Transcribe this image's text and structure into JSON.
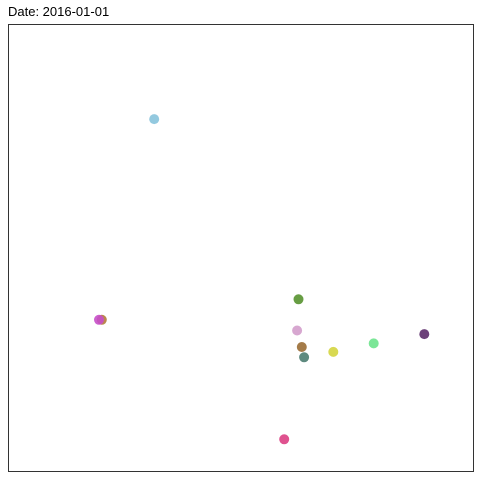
{
  "chart_data": {
    "type": "scatter",
    "title": "Date: 2016-01-01",
    "xlabel": "",
    "ylabel": "",
    "xlim": [
      0,
      100
    ],
    "ylim": [
      0,
      100
    ],
    "grid": false,
    "points": [
      {
        "x": 31.3,
        "y": 78.9,
        "color": "#87C3DB"
      },
      {
        "x": 62.4,
        "y": 38.5,
        "color": "#57922F"
      },
      {
        "x": 62.1,
        "y": 31.5,
        "color": "#D39DCB"
      },
      {
        "x": 63.1,
        "y": 27.8,
        "color": "#9A6D35"
      },
      {
        "x": 63.6,
        "y": 25.5,
        "color": "#4D7D71"
      },
      {
        "x": 20.0,
        "y": 33.9,
        "color": "#B47A3A"
      },
      {
        "x": 19.4,
        "y": 33.9,
        "color": "#C74FC9"
      },
      {
        "x": 89.5,
        "y": 30.7,
        "color": "#5C2C6A"
      },
      {
        "x": 78.6,
        "y": 28.6,
        "color": "#6DE38C"
      },
      {
        "x": 69.9,
        "y": 26.7,
        "color": "#D4D53F"
      },
      {
        "x": 59.3,
        "y": 7.1,
        "color": "#DC3F83"
      }
    ]
  }
}
